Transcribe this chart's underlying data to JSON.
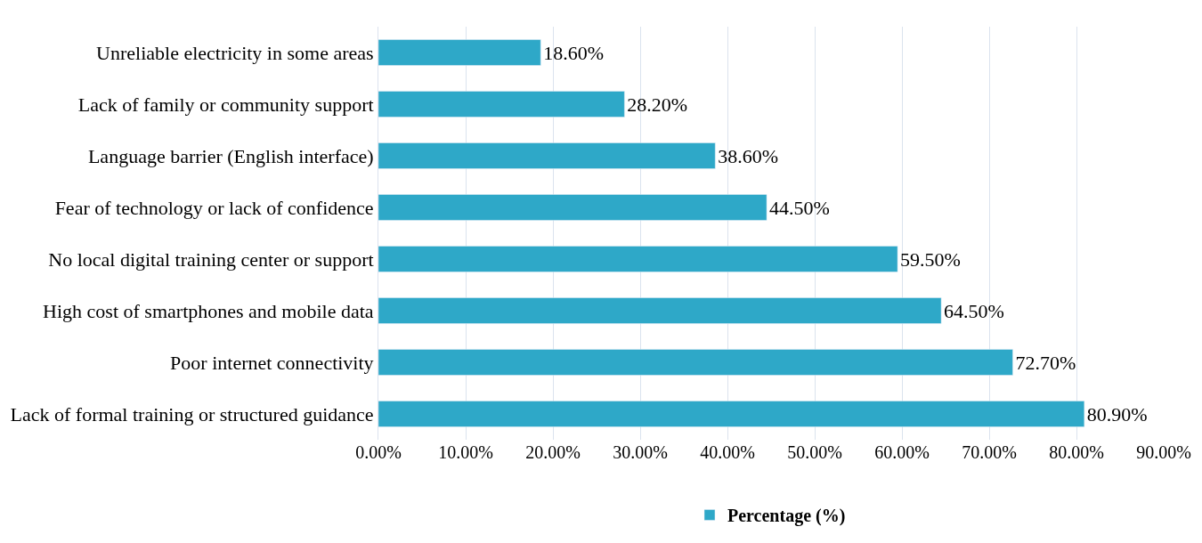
{
  "chart_data": {
    "type": "bar",
    "orientation": "horizontal",
    "categories": [
      "Unreliable electricity in some areas",
      "Lack of family or community support",
      "Language barrier (English interface)",
      "Fear of technology or lack of confidence",
      "No local digital training center or support",
      "High cost of smartphones and mobile data",
      "Poor internet connectivity",
      "Lack of formal training or structured guidance"
    ],
    "series": [
      {
        "name": "Percentage (%)",
        "color": "#2ea8c8",
        "values": [
          18.6,
          28.2,
          38.6,
          44.5,
          59.5,
          64.5,
          72.7,
          80.9
        ],
        "value_labels": [
          "18.60%",
          "28.20%",
          "38.60%",
          "44.50%",
          "59.50%",
          "64.50%",
          "72.70%",
          "80.90%"
        ]
      }
    ],
    "xlim": [
      0,
      90
    ],
    "xticks": [
      {
        "value": 0,
        "label": "0.00%"
      },
      {
        "value": 10,
        "label": "10.00%"
      },
      {
        "value": 20,
        "label": "20.00%"
      },
      {
        "value": 30,
        "label": "30.00%"
      },
      {
        "value": 40,
        "label": "40.00%"
      },
      {
        "value": 50,
        "label": "50.00%"
      },
      {
        "value": 60,
        "label": "60.00%"
      },
      {
        "value": 70,
        "label": "70.00%"
      },
      {
        "value": 80,
        "label": "80.00%"
      },
      {
        "value": 90,
        "label": "90.00%"
      }
    ],
    "grid": "x",
    "legend": "bottom"
  }
}
